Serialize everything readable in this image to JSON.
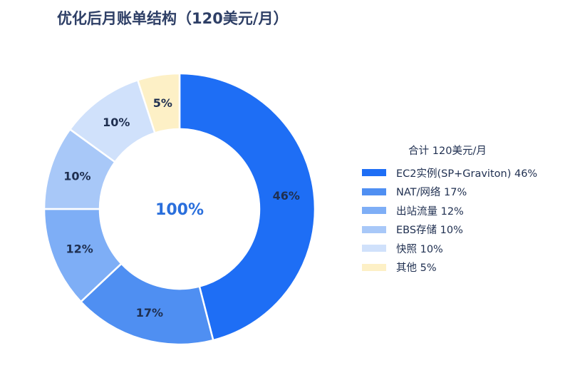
{
  "chart_data": {
    "type": "pie",
    "title": "优化后月账单结构（120美元/月）",
    "center_label": "100%",
    "legend_title": "合计 120美元/月",
    "legend_placement": "right",
    "slices": [
      {
        "label": "EC2实例(SP+Graviton)",
        "value": 46,
        "value_label": "46%",
        "legend_text": "EC2实例(SP+Graviton)  46%",
        "color": "#1e6ef5"
      },
      {
        "label": "NAT/网络",
        "value": 17,
        "value_label": "17%",
        "legend_text": "NAT/网络  17%",
        "color": "#4f8ff2"
      },
      {
        "label": "出站流量",
        "value": 12,
        "value_label": "12%",
        "legend_text": "出站流量  12%",
        "color": "#7eaef6"
      },
      {
        "label": "EBS存储",
        "value": 10,
        "value_label": "10%",
        "legend_text": "EBS存储  10%",
        "color": "#a8c8f8"
      },
      {
        "label": "快照",
        "value": 10,
        "value_label": "10%",
        "legend_text": "快照  10%",
        "color": "#d0e1fb"
      },
      {
        "label": "其他",
        "value": 5,
        "value_label": "5%",
        "legend_text": "其他  5%",
        "color": "#fdf0c6"
      }
    ]
  }
}
